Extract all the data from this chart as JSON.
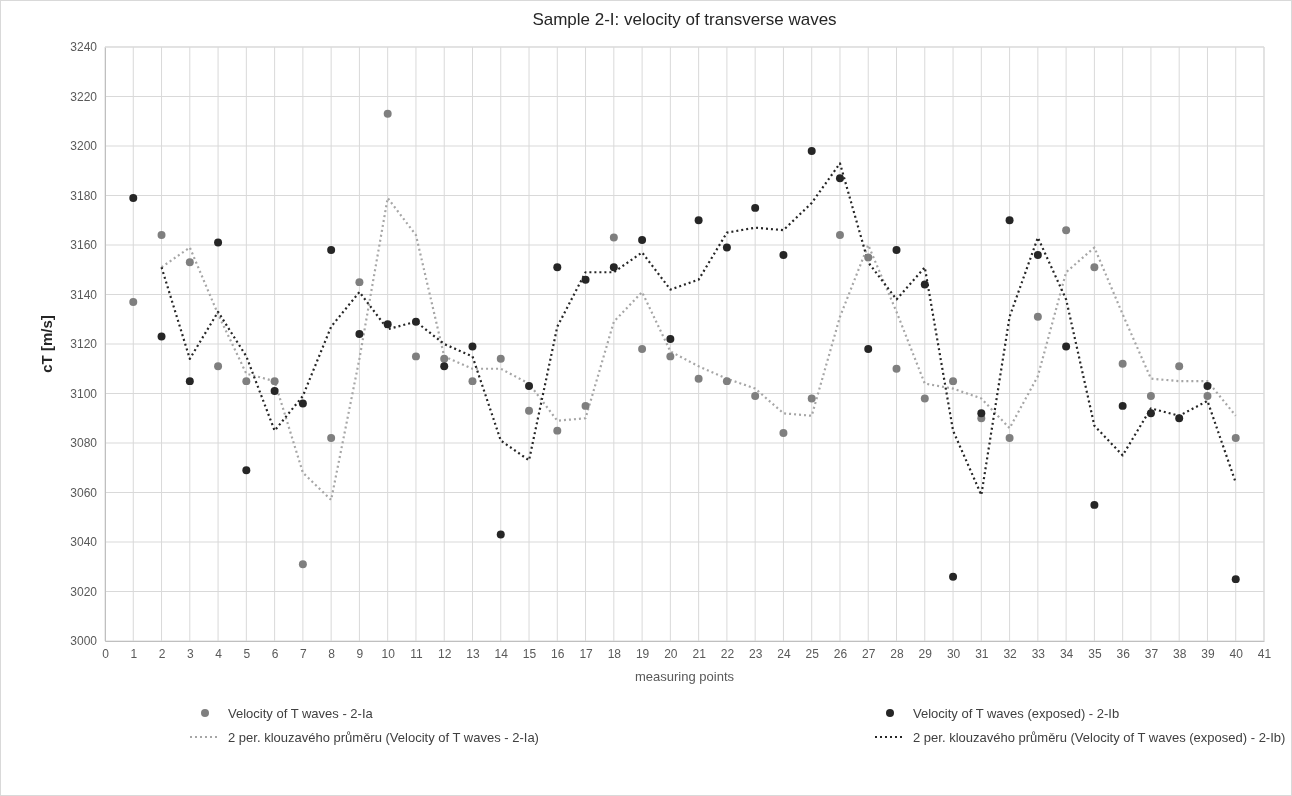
{
  "chart_data": {
    "type": "scatter",
    "title": "Sample 2-I: velocity of transverse waves",
    "xlabel": "measuring points",
    "ylabel": "cT [m/s]",
    "x": [
      1,
      2,
      3,
      4,
      5,
      6,
      7,
      8,
      9,
      10,
      11,
      12,
      13,
      14,
      15,
      16,
      17,
      18,
      19,
      20,
      21,
      22,
      23,
      24,
      25,
      26,
      27,
      28,
      29,
      30,
      31,
      32,
      33,
      34,
      35,
      36,
      37,
      38,
      39,
      40
    ],
    "series": [
      {
        "name": "Velocity of T waves - 2-Ia",
        "color": "#7f7f7f",
        "marker": "circle",
        "values": [
          3137,
          3164,
          3153,
          3111,
          3105,
          3105,
          3031,
          3082,
          3145,
          3213,
          3115,
          3114,
          3105,
          3114,
          3093,
          3085,
          3095,
          3163,
          3118,
          3115,
          3106,
          3105,
          3099,
          3084,
          3098,
          3164,
          3155,
          3110,
          3098,
          3105,
          3090,
          3082,
          3131,
          3166,
          3151,
          3112,
          3099,
          3111,
          3099,
          3082
        ]
      },
      {
        "name": "Velocity of T waves (exposed) - 2-Ib",
        "color": "#262626",
        "marker": "circle",
        "values": [
          3179,
          3123,
          3105,
          3161,
          3069,
          3101,
          3096,
          3158,
          3124,
          3128,
          3129,
          3111,
          3119,
          3043,
          3103,
          3151,
          3146,
          3151,
          3162,
          3122,
          3170,
          3159,
          3175,
          3156,
          3198,
          3187,
          3118,
          3158,
          3144,
          3026,
          3092,
          3170,
          3156,
          3119,
          3055,
          3095,
          3092,
          3090,
          3103,
          3025
        ]
      },
      {
        "name": "2 per. klouzavého průměru (Velocity of T waves - 2-Ia)",
        "type": "line",
        "color": "#a6a6a6",
        "marker": "none",
        "line_style": "dotted",
        "x": [
          2,
          3,
          4,
          5,
          6,
          7,
          8,
          9,
          10,
          11,
          12,
          13,
          14,
          15,
          16,
          17,
          18,
          19,
          20,
          21,
          22,
          23,
          24,
          25,
          26,
          27,
          28,
          29,
          30,
          31,
          32,
          33,
          34,
          35,
          36,
          37,
          38,
          39,
          40
        ],
        "values": [
          3151,
          3159,
          3132,
          3108,
          3105,
          3068,
          3057,
          3114,
          3179,
          3164,
          3115,
          3110,
          3110,
          3104,
          3089,
          3090,
          3129,
          3141,
          3117,
          3111,
          3106,
          3102,
          3092,
          3091,
          3131,
          3160,
          3133,
          3104,
          3102,
          3098,
          3086,
          3107,
          3149,
          3159,
          3132,
          3106,
          3105,
          3105,
          3091
        ]
      },
      {
        "name": "2 per. klouzavého průměru (Velocity of T waves (exposed) - 2-Ib)",
        "type": "line",
        "color": "#262626",
        "marker": "none",
        "line_style": "dotted",
        "x": [
          2,
          3,
          4,
          5,
          6,
          7,
          8,
          9,
          10,
          11,
          12,
          13,
          14,
          15,
          16,
          17,
          18,
          19,
          20,
          21,
          22,
          23,
          24,
          25,
          26,
          27,
          28,
          29,
          30,
          31,
          32,
          33,
          34,
          35,
          36,
          37,
          38,
          39,
          40
        ],
        "values": [
          3151,
          3114,
          3133,
          3115,
          3085,
          3099,
          3127,
          3141,
          3126,
          3129,
          3120,
          3115,
          3081,
          3073,
          3127,
          3149,
          3149,
          3157,
          3142,
          3146,
          3165,
          3167,
          3166,
          3177,
          3193,
          3153,
          3138,
          3151,
          3085,
          3059,
          3131,
          3163,
          3138,
          3087,
          3075,
          3094,
          3091,
          3097,
          3064
        ]
      }
    ],
    "xlim": [
      0,
      41
    ],
    "xticks": [
      0,
      1,
      2,
      3,
      4,
      5,
      6,
      7,
      8,
      9,
      10,
      11,
      12,
      13,
      14,
      15,
      16,
      17,
      18,
      19,
      20,
      21,
      22,
      23,
      24,
      25,
      26,
      27,
      28,
      29,
      30,
      31,
      32,
      33,
      34,
      35,
      36,
      37,
      38,
      39,
      40,
      41
    ],
    "ylim": [
      3000,
      3240
    ],
    "yticks": [
      3000,
      3020,
      3040,
      3060,
      3080,
      3100,
      3120,
      3140,
      3160,
      3180,
      3200,
      3220,
      3240
    ],
    "grid": true,
    "legend": "bottom"
  }
}
